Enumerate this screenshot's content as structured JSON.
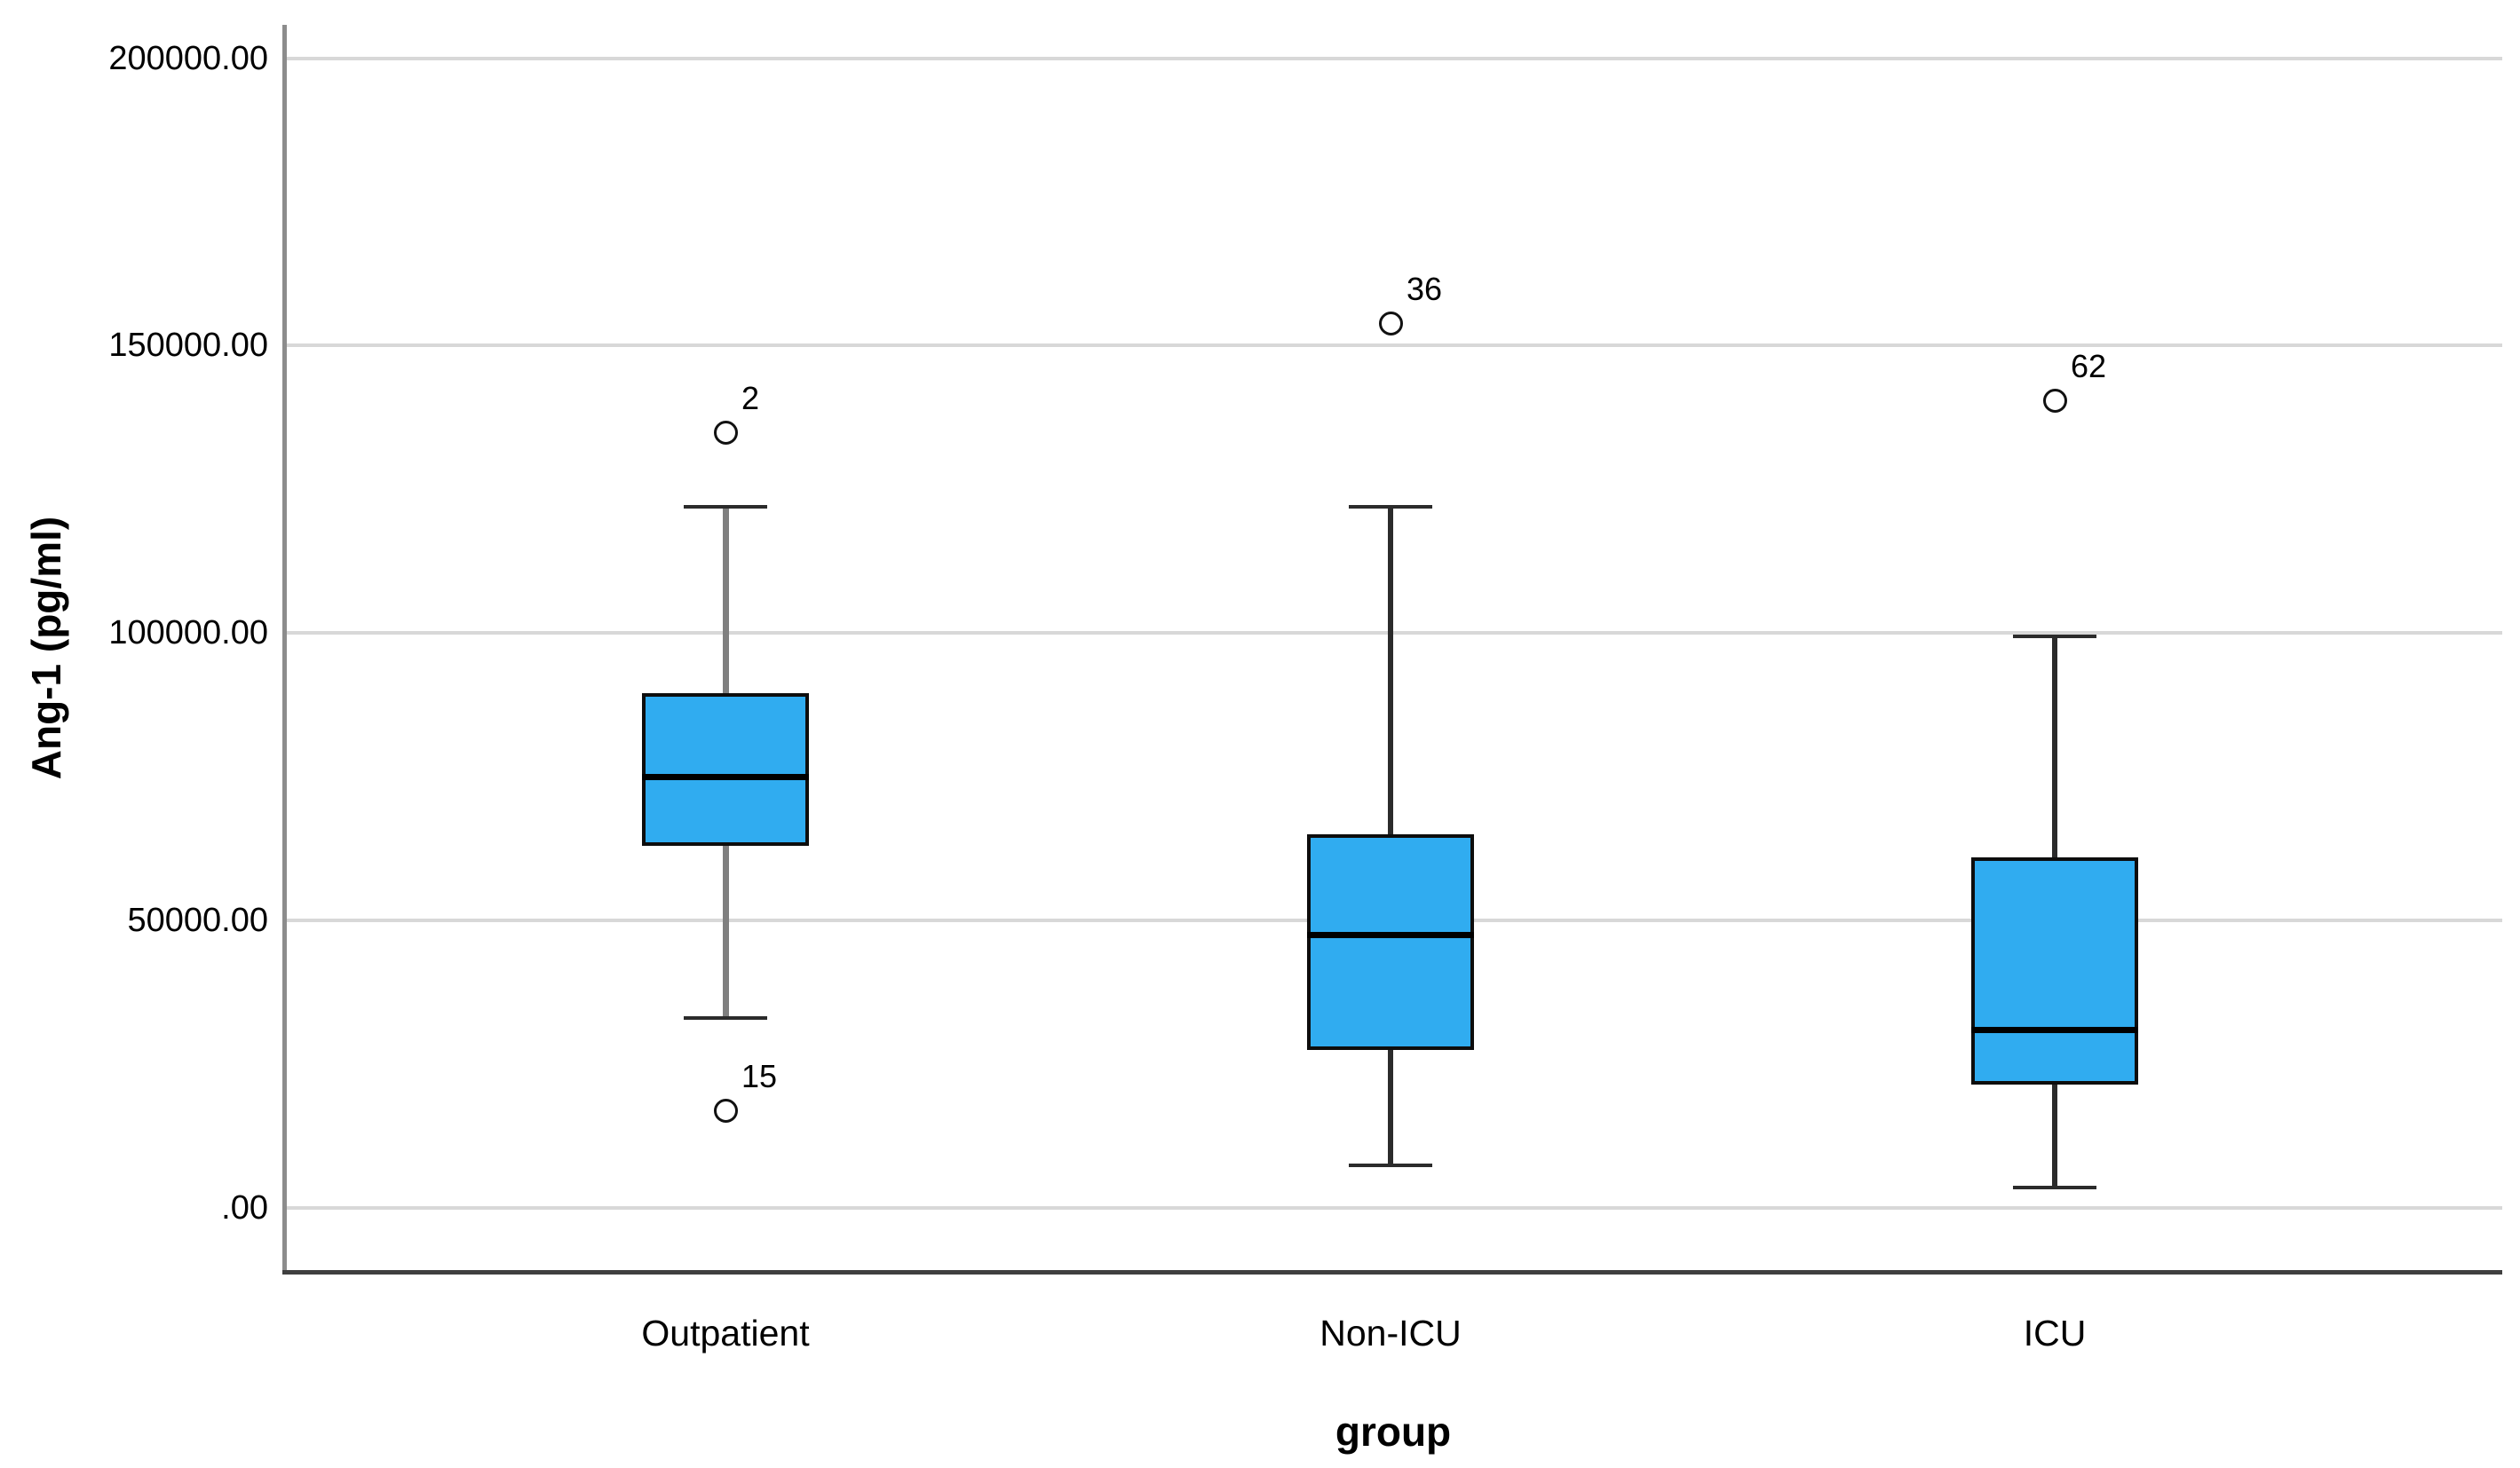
{
  "chart_data": {
    "type": "boxplot",
    "title": "",
    "xlabel": "group",
    "ylabel": "Ang-1 (pg/ml)",
    "categories": [
      "Outpatient",
      "Non-ICU",
      "ICU"
    ],
    "ylim": [
      -11100,
      205800
    ],
    "yticks": [
      {
        "value": 0,
        "label": ".00"
      },
      {
        "value": 50000,
        "label": "50000.00"
      },
      {
        "value": 100000,
        "label": "100000.00"
      },
      {
        "value": 150000,
        "label": "150000.00"
      },
      {
        "value": 200000,
        "label": "200000.00"
      }
    ],
    "grid": true,
    "legend": "none",
    "series": [
      {
        "name": "Outpatient",
        "whisker_low": 33000,
        "q1": 63000,
        "median": 75000,
        "q3": 89500,
        "whisker_high": 122000,
        "outliers": [
          {
            "label": "2",
            "value": 135000
          },
          {
            "label": "15",
            "value": 17000
          }
        ],
        "whisker_line_color": "#7f7f7f",
        "whisker_line_width": 7
      },
      {
        "name": "Non-ICU",
        "whisker_low": 7500,
        "q1": 27500,
        "median": 47500,
        "q3": 65000,
        "whisker_high": 122000,
        "outliers": [
          {
            "label": "36",
            "value": 154000
          }
        ],
        "whisker_line_color": "#2b2b2b",
        "whisker_line_width": 6
      },
      {
        "name": "ICU",
        "whisker_low": 3500,
        "q1": 21500,
        "median": 31000,
        "q3": 61000,
        "whisker_high": 99500,
        "outliers": [
          {
            "label": "62",
            "value": 140500
          }
        ],
        "whisker_line_color": "#2b2b2b",
        "whisker_line_width": 6
      }
    ],
    "style": {
      "box_fill": "#30acf0",
      "box_border": "#0d0d0d",
      "median_color": "#000000",
      "gridline_color": "#d8d8d8",
      "y_axis_color": "#8c8c8c",
      "x_axis_color": "#3f3f3f",
      "background": "#ffffff"
    }
  }
}
